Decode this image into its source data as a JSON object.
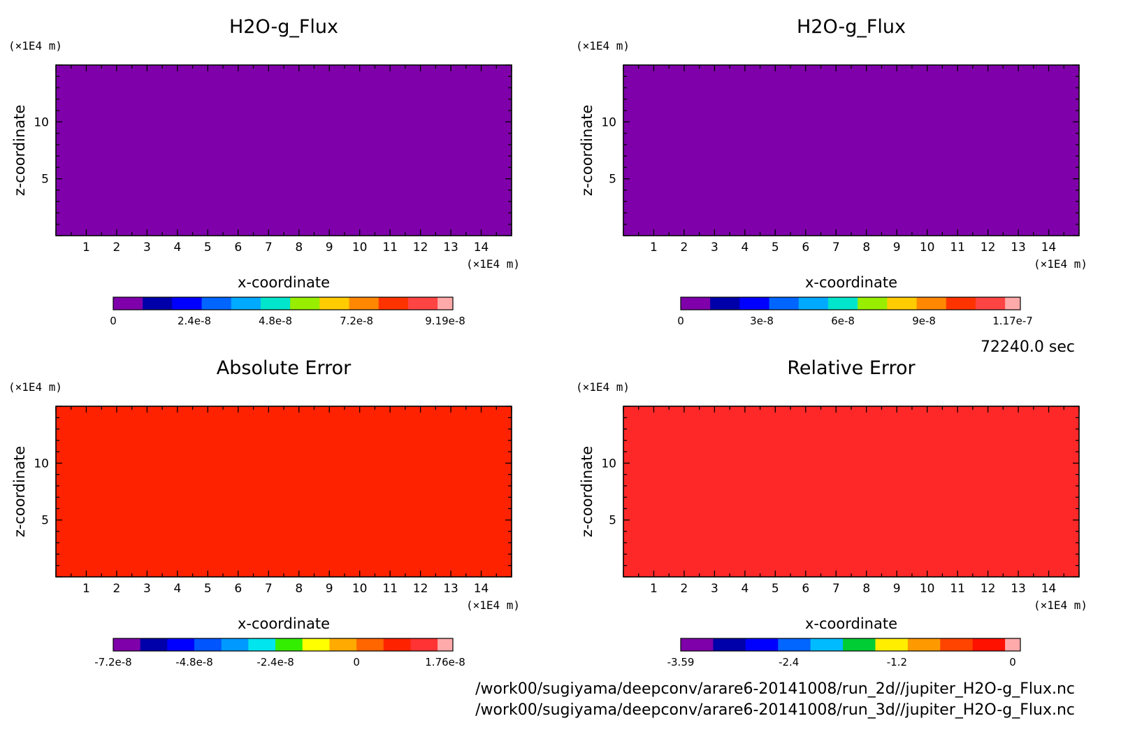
{
  "chart_data": [
    {
      "type": "heatmap",
      "title": "H2O-g_Flux",
      "xlabel": "x-coordinate",
      "ylabel": "z-coordinate",
      "x_unit": "(×1E4 m)",
      "y_unit": "(×1E4 m)",
      "xlim": [
        0,
        15
      ],
      "ylim": [
        0,
        15
      ],
      "x_ticks": [
        1,
        2,
        3,
        4,
        5,
        6,
        7,
        8,
        9,
        10,
        11,
        12,
        13,
        14
      ],
      "y_ticks": [
        5,
        10
      ],
      "fill_color": "#7f00aa",
      "colorbar": {
        "colors": [
          "#7f00aa",
          "#0000aa",
          "#0000ff",
          "#0066ff",
          "#00aaff",
          "#00e5cc",
          "#99ee00",
          "#ffcc00",
          "#ff8800",
          "#ff3300",
          "#ff4444",
          "#ffaaaa"
        ],
        "tick_labels": [
          "0",
          "2.4e-8",
          "4.8e-8",
          "7.2e-8",
          "9.19e-8"
        ]
      }
    },
    {
      "type": "heatmap",
      "title": "H2O-g_Flux",
      "xlabel": "x-coordinate",
      "ylabel": "z-coordinate",
      "x_unit": "(×1E4 m)",
      "y_unit": "(×1E4 m)",
      "xlim": [
        0,
        15
      ],
      "ylim": [
        0,
        15
      ],
      "x_ticks": [
        1,
        2,
        3,
        4,
        5,
        6,
        7,
        8,
        9,
        10,
        11,
        12,
        13,
        14
      ],
      "y_ticks": [
        5,
        10
      ],
      "fill_color": "#7f00aa",
      "colorbar": {
        "colors": [
          "#7f00aa",
          "#0000aa",
          "#0000ff",
          "#0066ff",
          "#00aaff",
          "#00e5cc",
          "#99ee00",
          "#ffcc00",
          "#ff8800",
          "#ff3300",
          "#ff4444",
          "#ffaaaa"
        ],
        "tick_labels": [
          "0",
          "3e-8",
          "6e-8",
          "9e-8",
          "1.17e-7"
        ]
      }
    },
    {
      "type": "heatmap",
      "title": "Absolute Error",
      "xlabel": "x-coordinate",
      "ylabel": "z-coordinate",
      "x_unit": "(×1E4 m)",
      "y_unit": "(×1E4 m)",
      "xlim": [
        0,
        15
      ],
      "ylim": [
        0,
        15
      ],
      "x_ticks": [
        1,
        2,
        3,
        4,
        5,
        6,
        7,
        8,
        9,
        10,
        11,
        12,
        13,
        14
      ],
      "y_ticks": [
        5,
        10
      ],
      "fill_color": "#ff2200",
      "colorbar": {
        "colors": [
          "#7f00aa",
          "#0000aa",
          "#0000ff",
          "#0055ff",
          "#0099ff",
          "#00e5ee",
          "#33ee00",
          "#ffff00",
          "#ffaa00",
          "#ff6600",
          "#ff2200",
          "#ff3333",
          "#ffaaaa"
        ],
        "tick_labels": [
          "-7.2e-8",
          "-4.8e-8",
          "-2.4e-8",
          "0",
          "1.76e-8"
        ]
      }
    },
    {
      "type": "heatmap",
      "title": "Relative Error",
      "xlabel": "x-coordinate",
      "ylabel": "z-coordinate",
      "x_unit": "(×1E4 m)",
      "y_unit": "(×1E4 m)",
      "xlim": [
        0,
        15
      ],
      "ylim": [
        0,
        15
      ],
      "x_ticks": [
        1,
        2,
        3,
        4,
        5,
        6,
        7,
        8,
        9,
        10,
        11,
        12,
        13,
        14
      ],
      "y_ticks": [
        5,
        10
      ],
      "fill_color": "#ff2828",
      "colorbar": {
        "colors": [
          "#7f00aa",
          "#0000aa",
          "#0000ff",
          "#0066ff",
          "#00bbff",
          "#00cc33",
          "#ffee00",
          "#ff9900",
          "#ff4400",
          "#ff1100",
          "#ffaaaa"
        ],
        "tick_labels": [
          "-3.59",
          "-2.4",
          "-1.2",
          "0"
        ]
      }
    }
  ],
  "time_label": "72240.0 sec",
  "file_paths": [
    "/work00/sugiyama/deepconv/arare6-20141008/run_2d//jupiter_H2O-g_Flux.nc",
    "/work00/sugiyama/deepconv/arare6-20141008/run_3d//jupiter_H2O-g_Flux.nc"
  ]
}
